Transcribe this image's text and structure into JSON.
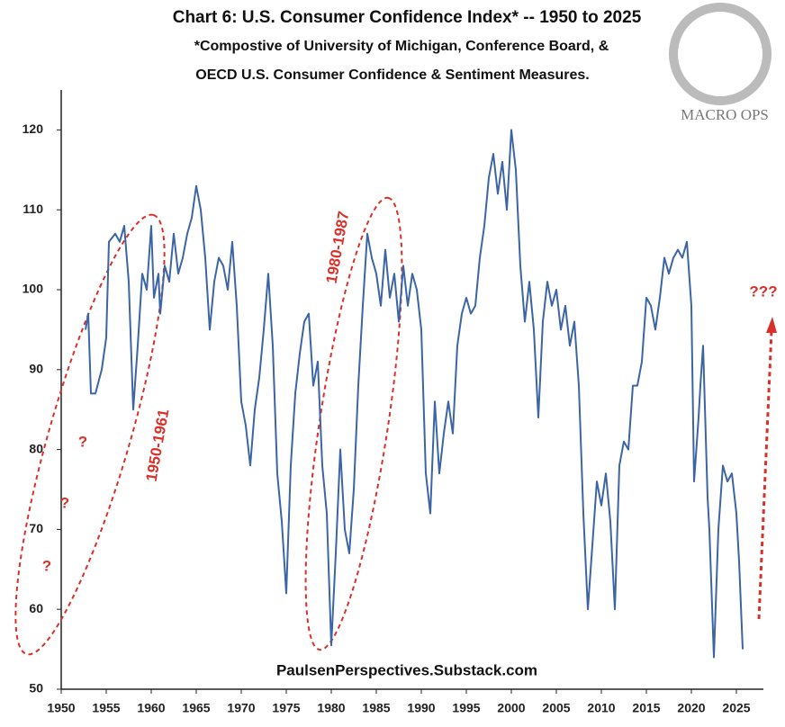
{
  "chart_data": {
    "type": "line",
    "title": "Chart 6: U.S. Consumer Confidence Index* -- 1950 to 2025",
    "subtitle": [
      "*Compostive of University of Michigan, Conference Board, &",
      "OECD U.S. Consumer Confidence & Sentiment Measures."
    ],
    "source": "PaulsenPerspectives.Substack.com",
    "logo": "MACRO OPS",
    "annotations": [
      "?",
      "?",
      "?",
      "1950-1961",
      "1980-1987",
      "???"
    ],
    "color": "#3b65a5",
    "xlim": [
      1950,
      2028
    ],
    "xticks": [
      1950,
      1955,
      1960,
      1965,
      1970,
      1975,
      1980,
      1985,
      1990,
      1995,
      2000,
      2005,
      2010,
      2015,
      2020,
      2025
    ],
    "ylim": [
      50,
      125
    ],
    "yticks": [
      50,
      60,
      70,
      80,
      90,
      100,
      110,
      120
    ],
    "x": [
      1952.7,
      1953,
      1953.3,
      1953.8,
      1954.5,
      1955,
      1955.3,
      1956,
      1956.5,
      1957,
      1957.5,
      1958,
      1958.5,
      1959,
      1959.5,
      1960,
      1960.3,
      1960.8,
      1961,
      1961.5,
      1962,
      1962.5,
      1963,
      1963.5,
      1964,
      1964.5,
      1965,
      1965.5,
      1966,
      1966.5,
      1967,
      1967.5,
      1968,
      1968.5,
      1969,
      1969.5,
      1970,
      1970.5,
      1971,
      1971.5,
      1972,
      1972.5,
      1973,
      1973.5,
      1974,
      1974.5,
      1975,
      1975.5,
      1976,
      1976.5,
      1977,
      1977.5,
      1978,
      1978.5,
      1979,
      1979.5,
      1980,
      1980.5,
      1981,
      1981.5,
      1982,
      1982.5,
      1983,
      1983.5,
      1984,
      1984.5,
      1985,
      1985.5,
      1986,
      1986.5,
      1987,
      1987.5,
      1988,
      1988.5,
      1989,
      1989.5,
      1990,
      1990.5,
      1991,
      1991.5,
      1992,
      1992.5,
      1993,
      1993.5,
      1994,
      1994.5,
      1995,
      1995.5,
      1996,
      1996.5,
      1997,
      1997.5,
      1998,
      1998.5,
      1999,
      1999.5,
      2000,
      2000.5,
      2001,
      2001.5,
      2002,
      2002.5,
      2003,
      2003.5,
      2004,
      2004.5,
      2005,
      2005.5,
      2006,
      2006.5,
      2007,
      2007.5,
      2008,
      2008.5,
      2009,
      2009.5,
      2010,
      2010.5,
      2011,
      2011.5,
      2012,
      2012.5,
      2013,
      2013.5,
      2014,
      2014.5,
      2015,
      2015.5,
      2016,
      2016.5,
      2017,
      2017.5,
      2018,
      2018.5,
      2019,
      2019.5,
      2020,
      2020.3,
      2020.8,
      2021,
      2021.3,
      2021.8,
      2022,
      2022.5,
      2023,
      2023.5,
      2024,
      2024.5,
      2025,
      2025.3,
      2025.7
    ],
    "values": [
      95,
      97,
      87,
      87,
      90,
      94,
      106,
      107,
      106,
      108,
      101,
      85,
      93,
      102,
      100,
      108,
      99,
      102,
      97,
      103,
      101,
      107,
      102,
      104,
      107,
      109,
      113,
      110,
      104,
      95,
      101,
      104,
      103,
      100,
      106,
      98,
      86,
      83,
      78,
      85,
      89,
      95,
      102,
      93,
      77,
      71,
      62,
      78,
      87,
      92,
      96,
      97,
      88,
      91,
      78,
      72,
      55.5,
      67,
      80,
      70,
      67,
      75,
      88,
      98,
      107,
      104,
      102,
      98,
      105,
      99,
      102,
      96,
      103,
      98,
      102,
      100,
      95,
      77,
      72,
      86,
      77,
      82,
      86,
      82,
      93,
      97,
      99,
      97,
      98,
      104,
      108,
      114,
      117,
      112,
      116,
      110,
      120,
      115,
      103,
      96,
      101,
      95,
      84,
      96,
      101,
      98,
      100,
      95,
      98,
      93,
      96,
      88,
      72,
      60,
      68,
      76,
      73,
      77,
      71,
      60,
      78,
      81,
      80,
      88,
      88,
      91,
      99,
      98,
      95,
      99,
      104,
      102,
      104,
      105,
      104,
      106,
      98,
      76,
      84,
      88,
      93,
      74,
      70,
      54,
      70,
      78,
      76,
      77,
      72,
      66,
      55
    ]
  }
}
